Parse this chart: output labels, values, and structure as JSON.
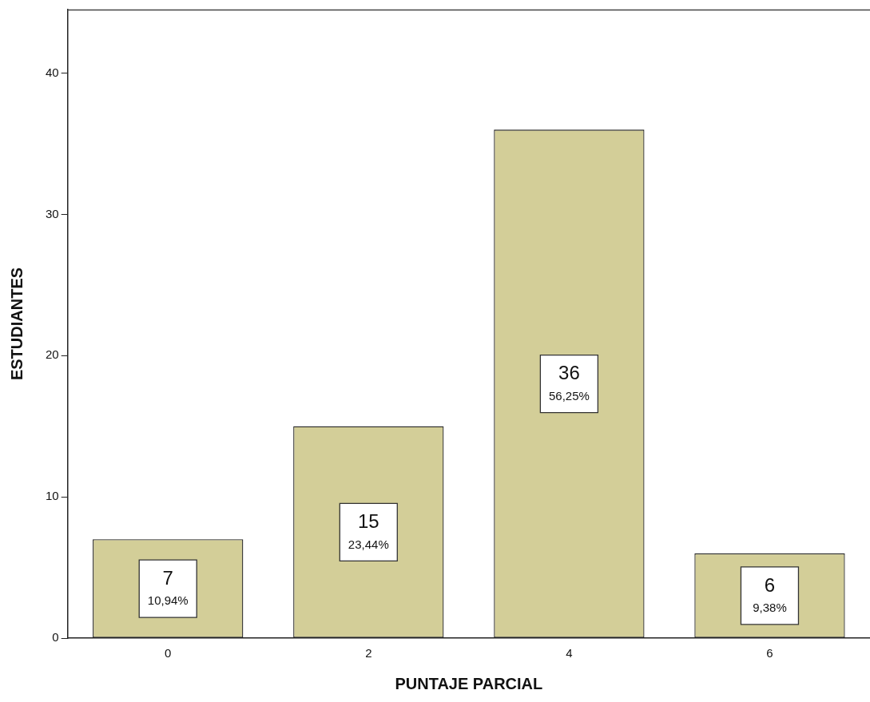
{
  "chart_data": {
    "type": "bar",
    "xlabel": "PUNTAJE PARCIAL",
    "ylabel": "ESTUDIANTES",
    "categories": [
      "0",
      "2",
      "4",
      "6"
    ],
    "values": [
      7,
      15,
      36,
      6
    ],
    "color": "#d3ce98",
    "value_labels": [
      "7\n10,94%",
      "15\n23,44%",
      "36\n56,25%",
      "6\n9,38%"
    ],
    "ylim": [
      0,
      44.5
    ],
    "yticks": [
      0,
      10,
      20,
      30,
      40
    ],
    "grid": false,
    "legend": false
  }
}
